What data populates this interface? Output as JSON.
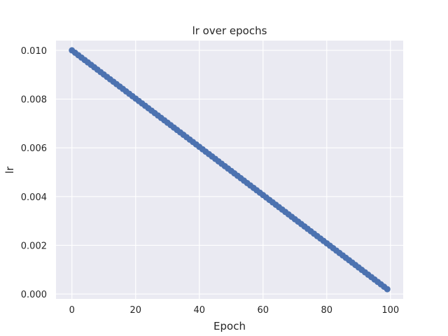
{
  "chart_data": {
    "type": "line",
    "title": "lr over epochs",
    "xlabel": "Epoch",
    "ylabel": "lr",
    "xlim": [
      -5,
      104
    ],
    "ylim": [
      -0.0002,
      0.0104
    ],
    "xticks": [
      0,
      20,
      40,
      60,
      80,
      100
    ],
    "xtick_labels": [
      "0",
      "20",
      "40",
      "60",
      "80",
      "100"
    ],
    "yticks": [
      0.0,
      0.002,
      0.004,
      0.006,
      0.008,
      0.01
    ],
    "ytick_labels": [
      "0.000",
      "0.002",
      "0.004",
      "0.006",
      "0.008",
      "0.010"
    ],
    "grid": true,
    "series": [
      {
        "color": "#4c72b0",
        "marker": "circle",
        "x_start": 0,
        "x_end": 99,
        "x_step": 1,
        "y_start": 0.01,
        "y_end": 0.0002
      }
    ],
    "colors": {
      "background": "#eaeaf2",
      "grid": "#ffffff",
      "line": "#4c72b0",
      "text": "#262626"
    }
  }
}
